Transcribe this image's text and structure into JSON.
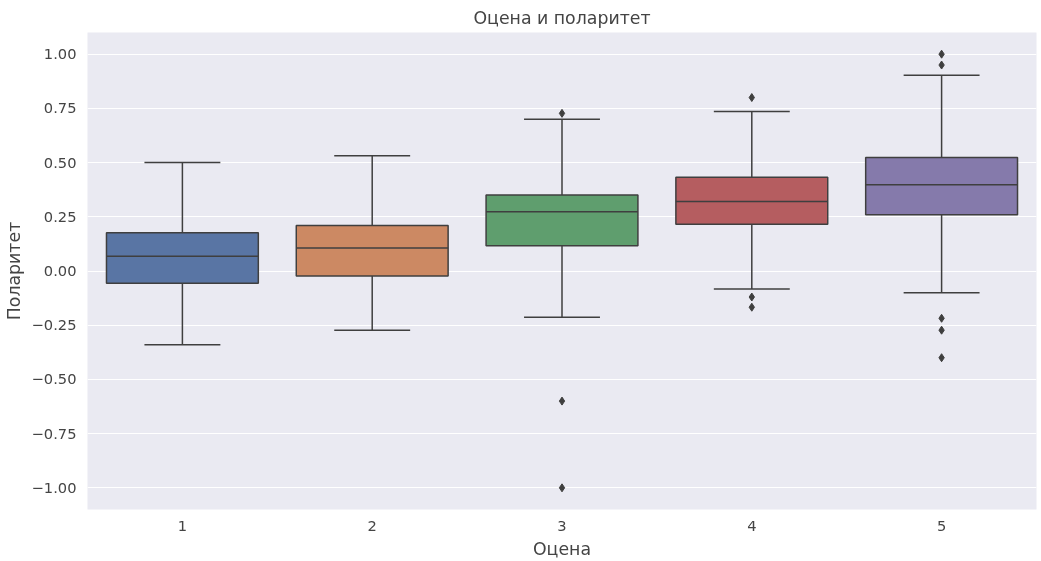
{
  "chart_data": {
    "type": "box",
    "title": "Оцена и поларитет",
    "xlabel": "Оцена",
    "ylabel": "Поларитет",
    "categories": [
      "1",
      "2",
      "3",
      "4",
      "5"
    ],
    "colors": [
      "#5975a4",
      "#cc8963",
      "#5f9e6e",
      "#b55d60",
      "#857aab"
    ],
    "boxes": [
      {
        "low": -0.34,
        "q1": -0.056,
        "median": 0.068,
        "q3": 0.176,
        "high": 0.5
      },
      {
        "low": -0.273,
        "q1": -0.023,
        "median": 0.106,
        "q3": 0.21,
        "high": 0.532
      },
      {
        "low": -0.213,
        "q1": 0.116,
        "median": 0.273,
        "q3": 0.35,
        "high": 0.7,
        "outliers": [
          0.727,
          -0.6,
          -1.0
        ]
      },
      {
        "low": -0.083,
        "q1": 0.216,
        "median": 0.32,
        "q3": 0.432,
        "high": 0.736,
        "outliers": [
          0.8,
          -0.12,
          -0.167
        ]
      },
      {
        "low": -0.1,
        "q1": 0.259,
        "median": 0.398,
        "q3": 0.523,
        "high": 0.903,
        "outliers": [
          1.0,
          0.95,
          -0.218,
          -0.273,
          -0.4
        ]
      }
    ],
    "ylim": [
      -1.1,
      1.1
    ],
    "yticks": [
      {
        "value": -1,
        "label": "−1.00"
      },
      {
        "value": -0.75,
        "label": "−0.75"
      },
      {
        "value": -0.5,
        "label": "−0.50"
      },
      {
        "value": -0.25,
        "label": "−0.25"
      },
      {
        "value": 0,
        "label": "0.00"
      },
      {
        "value": 0.25,
        "label": "0.25"
      },
      {
        "value": 0.5,
        "label": "0.50"
      },
      {
        "value": 0.75,
        "label": "0.75"
      },
      {
        "value": 1,
        "label": "1.00"
      }
    ],
    "grid": "y",
    "marker": "diamond"
  }
}
